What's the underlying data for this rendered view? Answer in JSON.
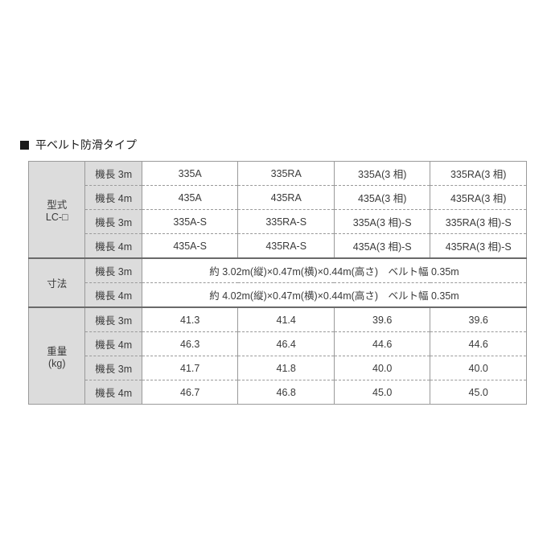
{
  "title": "平ベルト防滑タイプ",
  "headers": {
    "model": "型式\nLC-□",
    "dim": "寸法",
    "weight": "重量\n(kg)"
  },
  "subcol": [
    "機長 3m",
    "機長 4m",
    "機長 3m",
    "機長 4m",
    "機長 3m",
    "機長 4m",
    "機長 3m",
    "機長 4m",
    "機長 3m",
    "機長 4m"
  ],
  "model_rows": [
    [
      "335A",
      "335RA",
      "335A(3 相)",
      "335RA(3 相)"
    ],
    [
      "435A",
      "435RA",
      "435A(3 相)",
      "435RA(3 相)"
    ],
    [
      "335A-S",
      "335RA-S",
      "335A(3 相)-S",
      "335RA(3 相)-S"
    ],
    [
      "435A-S",
      "435RA-S",
      "435A(3 相)-S",
      "435RA(3 相)-S"
    ]
  ],
  "dim_rows": [
    "約 3.02m(縦)×0.47m(横)×0.44m(高さ)　ベルト幅 0.35m",
    "約 4.02m(縦)×0.47m(横)×0.44m(高さ)　ベルト幅 0.35m"
  ],
  "weight_rows": [
    [
      "41.3",
      "41.4",
      "39.6",
      "39.6"
    ],
    [
      "46.3",
      "46.4",
      "44.6",
      "44.6"
    ],
    [
      "41.7",
      "41.8",
      "40.0",
      "40.0"
    ],
    [
      "46.7",
      "46.8",
      "45.0",
      "45.0"
    ]
  ]
}
